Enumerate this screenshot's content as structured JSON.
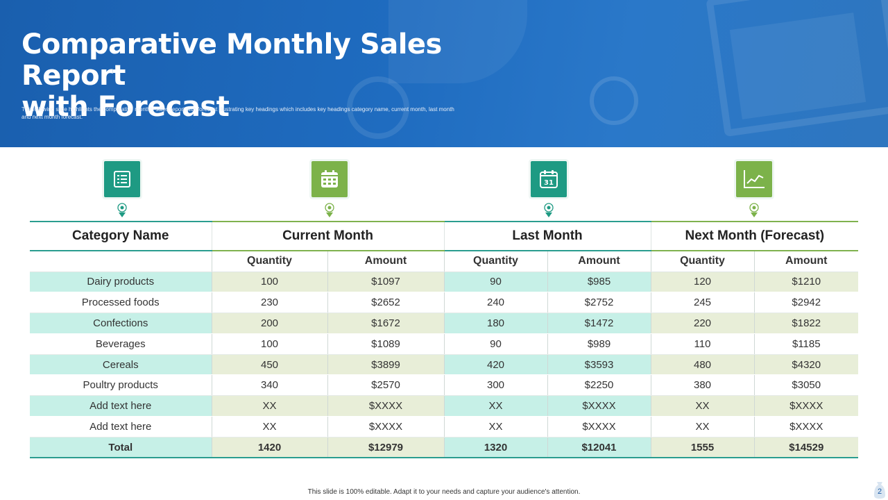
{
  "header": {
    "title_line1": "Comparative Monthly Sales Report",
    "title_line2": "with Forecast",
    "subtitle_line1": "The following slide highlights the comparative monthly sales report with forecast illustrating key headings which includes key headings category name, current month, last month",
    "subtitle_line2": "and next month forecast."
  },
  "icons": [
    {
      "name": "list-icon",
      "color": "#1e9a83"
    },
    {
      "name": "calendar-grid-icon",
      "color": "#7cb24a"
    },
    {
      "name": "calendar-31-icon",
      "color": "#1e9a83",
      "label": "31"
    },
    {
      "name": "line-chart-icon",
      "color": "#7cb24a"
    }
  ],
  "table": {
    "group_headers": [
      "Category Name",
      "Current Month",
      "Last Month",
      "Next Month (Forecast)"
    ],
    "sub_headers": [
      "Quantity",
      "Amount",
      "Quantity",
      "Amount",
      "Quantity",
      "Amount"
    ],
    "rows": [
      [
        "Dairy products",
        "100",
        "$1097",
        "90",
        "$985",
        "120",
        "$1210"
      ],
      [
        "Processed foods",
        "230",
        "$2652",
        "240",
        "$2752",
        "245",
        "$2942"
      ],
      [
        "Confections",
        "200",
        "$1672",
        "180",
        "$1472",
        "220",
        "$1822"
      ],
      [
        "Beverages",
        "100",
        "$1089",
        "90",
        "$989",
        "110",
        "$1185"
      ],
      [
        "Cereals",
        "450",
        "$3899",
        "420",
        "$3593",
        "480",
        "$4320"
      ],
      [
        "Poultry products",
        "340",
        "$2570",
        "300",
        "$2250",
        "380",
        "$3050"
      ],
      [
        "Add text here",
        "XX",
        "$XXXX",
        "XX",
        "$XXXX",
        "XX",
        "$XXXX"
      ],
      [
        "Add text here",
        "XX",
        "$XXXX",
        "XX",
        "$XXXX",
        "XX",
        "$XXXX"
      ]
    ],
    "total": [
      "Total",
      "1420",
      "$12979",
      "1320",
      "$12041",
      "1555",
      "$14529"
    ]
  },
  "footer": {
    "note": "This slide is 100% editable. Adapt it to your needs and capture your audience's attention.",
    "page_number": "2"
  },
  "colors": {
    "banner": "#1f6cc0",
    "teal_accent": "#2a9d8f",
    "green_accent": "#7cb24a",
    "teal_row": "#c6f0e7",
    "olive_row": "#e8eed8"
  }
}
